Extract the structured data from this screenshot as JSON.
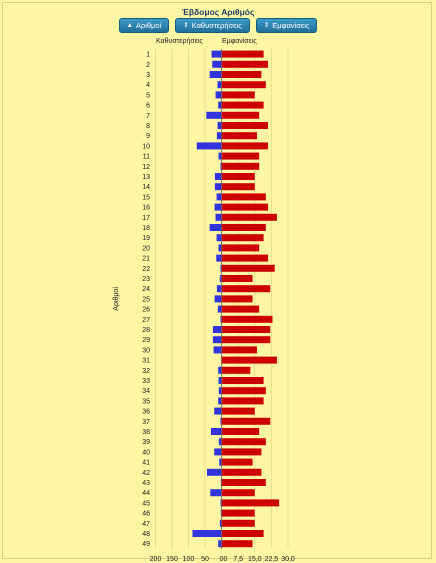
{
  "chart_data": {
    "type": "bar",
    "title": "Έβδομος Αριθμός",
    "ylabel": "Αριθμοί",
    "categories": [
      "1",
      "2",
      "3",
      "4",
      "5",
      "6",
      "7",
      "8",
      "9",
      "10",
      "11",
      "12",
      "13",
      "14",
      "15",
      "16",
      "17",
      "18",
      "19",
      "20",
      "21",
      "22",
      "23",
      "24",
      "25",
      "26",
      "27",
      "28",
      "29",
      "30",
      "31",
      "32",
      "33",
      "34",
      "35",
      "36",
      "37",
      "38",
      "39",
      "40",
      "41",
      "42",
      "43",
      "44",
      "45",
      "46",
      "47",
      "48",
      "49"
    ],
    "series": [
      {
        "name": "Καθυστερήσεις",
        "color": "#3333dd",
        "direction": "left",
        "xlim": [
          0,
          200
        ],
        "ticks": [
          "200",
          "150",
          "100",
          "50",
          "0"
        ],
        "values": [
          30,
          28,
          36,
          12,
          18,
          10,
          46,
          12,
          14,
          75,
          9,
          3,
          20,
          20,
          15,
          21,
          18,
          36,
          15,
          9,
          16,
          3,
          5,
          14,
          21,
          11,
          3,
          26,
          26,
          24,
          0,
          10,
          9,
          8,
          10,
          22,
          3,
          32,
          8,
          22,
          7,
          44,
          2,
          34,
          3,
          2,
          5,
          88,
          10
        ]
      },
      {
        "name": "Εμφανίσεις",
        "color": "#cc0000",
        "direction": "right",
        "xlim": [
          0,
          30
        ],
        "ticks": [
          "0",
          "7,5",
          "15,0",
          "22,5",
          "30,0"
        ],
        "values": [
          19,
          21,
          18,
          20,
          15,
          19,
          17,
          21,
          16,
          21,
          17,
          17,
          15,
          15,
          20,
          21,
          25,
          20,
          19,
          17,
          21,
          24,
          14,
          22,
          14,
          17,
          23,
          22,
          22,
          16,
          25,
          13,
          19,
          20,
          19,
          15,
          22,
          17,
          20,
          18,
          14,
          18,
          20,
          15,
          26,
          15,
          15,
          19,
          14
        ]
      }
    ],
    "grid": true
  },
  "controls": {
    "buttons": [
      {
        "label": "Αριθμοί",
        "arrow": "▲"
      },
      {
        "label": "Καθυστερήσεις",
        "arrow": "⇕"
      },
      {
        "label": "Εμφανίσεις",
        "arrow": "⇕"
      }
    ]
  }
}
